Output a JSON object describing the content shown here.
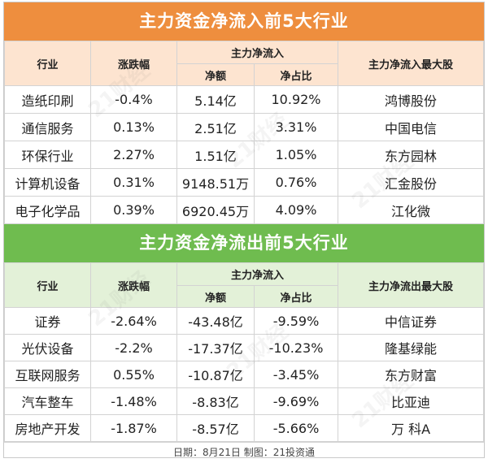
{
  "inflow": {
    "title": "主力资金净流入前5大行业",
    "headers": {
      "industry": "行业",
      "change": "涨跌幅",
      "net_group": "主力净流入",
      "net_amount": "净额",
      "net_ratio": "净占比",
      "top_stock": "主力净流入最大股"
    },
    "rows": [
      {
        "industry": "造纸印刷",
        "change": "-0.4%",
        "amount": "5.14亿",
        "ratio": "10.92%",
        "stock": "鸿博股份"
      },
      {
        "industry": "通信服务",
        "change": "0.13%",
        "amount": "2.51亿",
        "ratio": "3.31%",
        "stock": "中国电信"
      },
      {
        "industry": "环保行业",
        "change": "2.27%",
        "amount": "1.51亿",
        "ratio": "1.05%",
        "stock": "东方园林"
      },
      {
        "industry": "计算机设备",
        "change": "0.31%",
        "amount": "9148.51万",
        "ratio": "0.76%",
        "stock": "汇金股份"
      },
      {
        "industry": "电子化学品",
        "change": "0.39%",
        "amount": "6920.45万",
        "ratio": "4.09%",
        "stock": "江化微"
      }
    ]
  },
  "outflow": {
    "title": "主力资金净流出前5大行业",
    "headers": {
      "industry": "行业",
      "change": "涨跌幅",
      "net_group": "主力净流入",
      "net_amount": "净额",
      "net_ratio": "净占比",
      "top_stock": "主力净流出最大股"
    },
    "rows": [
      {
        "industry": "证券",
        "change": "-2.64%",
        "amount": "-43.48亿",
        "ratio": "-9.59%",
        "stock": "中信证券"
      },
      {
        "industry": "光伏设备",
        "change": "-2.2%",
        "amount": "-17.37亿",
        "ratio": "-10.23%",
        "stock": "隆基绿能"
      },
      {
        "industry": "互联网服务",
        "change": "0.55%",
        "amount": "-10.87亿",
        "ratio": "-3.45%",
        "stock": "东方财富"
      },
      {
        "industry": "汽车整车",
        "change": "-1.48%",
        "amount": "-8.83亿",
        "ratio": "-9.69%",
        "stock": "比亚迪"
      },
      {
        "industry": "房地产开发",
        "change": "-1.87%",
        "amount": "-8.57亿",
        "ratio": "-5.66%",
        "stock": "万  科A"
      }
    ]
  },
  "footer": "日期：8月21日 制图：21投资通",
  "watermark": "21财经",
  "colors": {
    "inflow_banner": "#ee8e3e",
    "outflow_banner": "#6fbc4f"
  }
}
